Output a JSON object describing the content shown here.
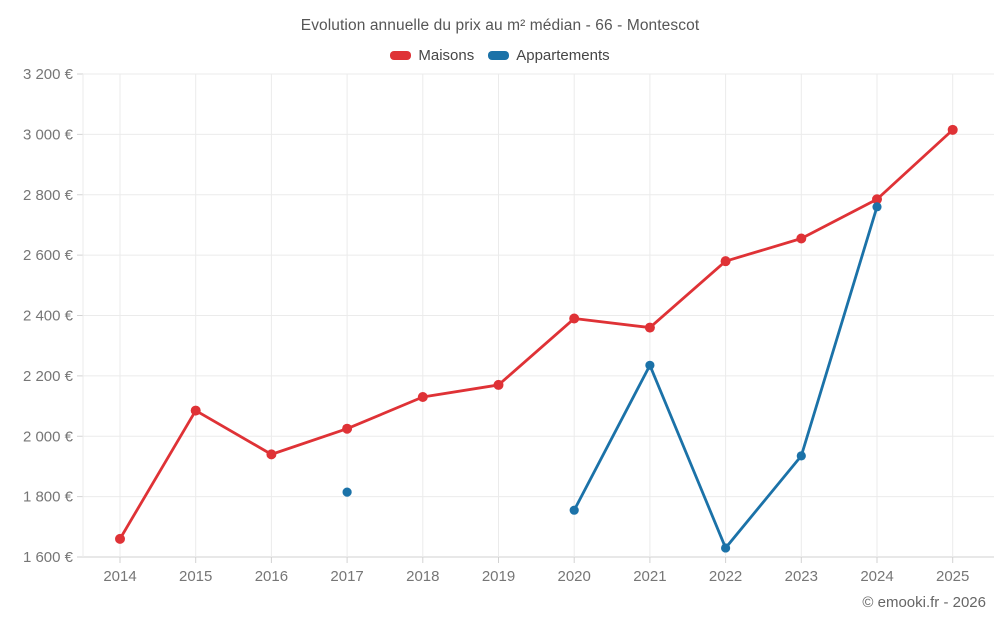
{
  "header": {
    "title": "Evolution annuelle du prix au m² médian - 66 - Montescot"
  },
  "legend": {
    "items": [
      {
        "label": "Maisons",
        "color": "#df3236"
      },
      {
        "label": "Appartements",
        "color": "#1b72a8"
      }
    ]
  },
  "footer": {
    "credit": "© emooki.fr - 2026"
  },
  "colors": {
    "maisons": "#df3236",
    "appartements": "#1b72a8",
    "grid": "#ebebeb",
    "axis_line": "#d2d2d2",
    "tick_label": "#767676",
    "title_text": "#565656",
    "legend_text": "#464646",
    "footer_text": "#666666",
    "background": "#ffffff"
  },
  "chart_data": {
    "type": "line",
    "title": "Evolution annuelle du prix au m² médian - 66 - Montescot",
    "x": [
      "2014",
      "2015",
      "2016",
      "2017",
      "2018",
      "2019",
      "2020",
      "2021",
      "2022",
      "2023",
      "2024",
      "2025"
    ],
    "series": [
      {
        "name": "Maisons",
        "color": "#df3236",
        "values": [
          1660,
          2085,
          1940,
          2025,
          2130,
          2170,
          2390,
          2360,
          2580,
          2655,
          2785,
          3015
        ]
      },
      {
        "name": "Appartements",
        "color": "#1b72a8",
        "values": [
          null,
          null,
          null,
          1815,
          null,
          null,
          1755,
          2235,
          1630,
          1935,
          2760,
          null
        ]
      }
    ],
    "xlabel": "",
    "ylabel": "",
    "y_unit": "€",
    "ylim": [
      1600,
      3200
    ],
    "ytick_step": 200,
    "grid": true,
    "legend_position": "top"
  }
}
